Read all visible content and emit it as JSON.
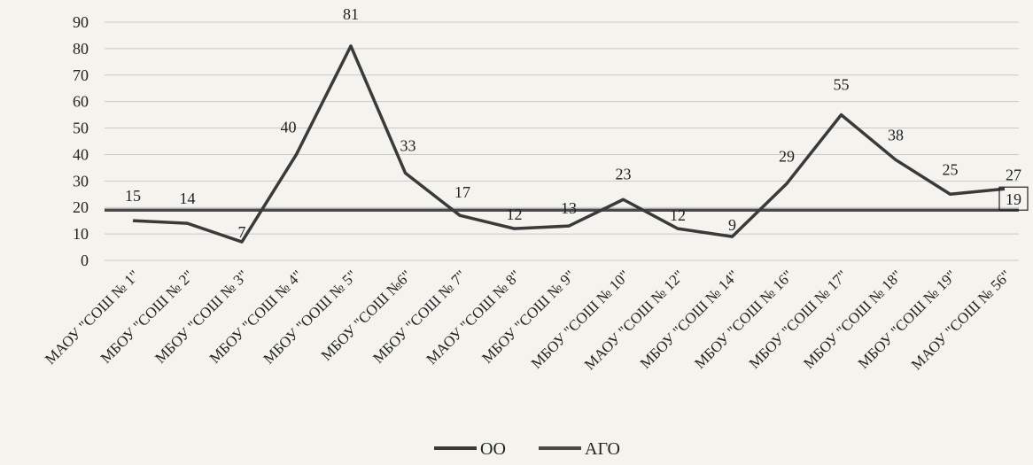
{
  "chart_data": {
    "type": "line",
    "categories": [
      "МАОУ \"СОШ № 1\"",
      "МБОУ \"СОШ № 2\"",
      "МБОУ \"СОШ № 3\"",
      "МБОУ \"СОШ № 4\"",
      "МБОУ \"ООШ № 5\"",
      "МБОУ \"СОШ №6\"",
      "МБОУ \"СОШ № 7\"",
      "МАОУ \"СОШ № 8\"",
      "МБОУ \"СОШ № 9\"",
      "МБОУ \"СОШ № 10\"",
      "МАОУ \"СОШ № 12\"",
      "МБОУ \"СОШ № 14\"",
      "МБОУ \"СОШ № 16\"",
      "МБОУ \"СОШ № 17\"",
      "МБОУ \"СОШ № 18\"",
      "МБОУ \"СОШ № 19\"",
      "МАОУ \"СОШ № 56\""
    ],
    "series": [
      {
        "name": "ОО",
        "values": [
          15,
          14,
          7,
          40,
          81,
          33,
          17,
          12,
          13,
          23,
          12,
          9,
          29,
          55,
          38,
          25,
          27
        ],
        "color": "#3a3a3a"
      },
      {
        "name": "АГО",
        "values": [
          19,
          19,
          19,
          19,
          19,
          19,
          19,
          19,
          19,
          19,
          19,
          19,
          19,
          19,
          19,
          19,
          19
        ],
        "color": "#4a4a4a",
        "label": "19"
      }
    ],
    "y_ticks": [
      0,
      10,
      20,
      30,
      40,
      50,
      60,
      70,
      80,
      90
    ],
    "ylim": [
      0,
      90
    ],
    "grid": true,
    "legend_position": "bottom-center",
    "title": "",
    "xlabel": "",
    "ylabel": ""
  }
}
